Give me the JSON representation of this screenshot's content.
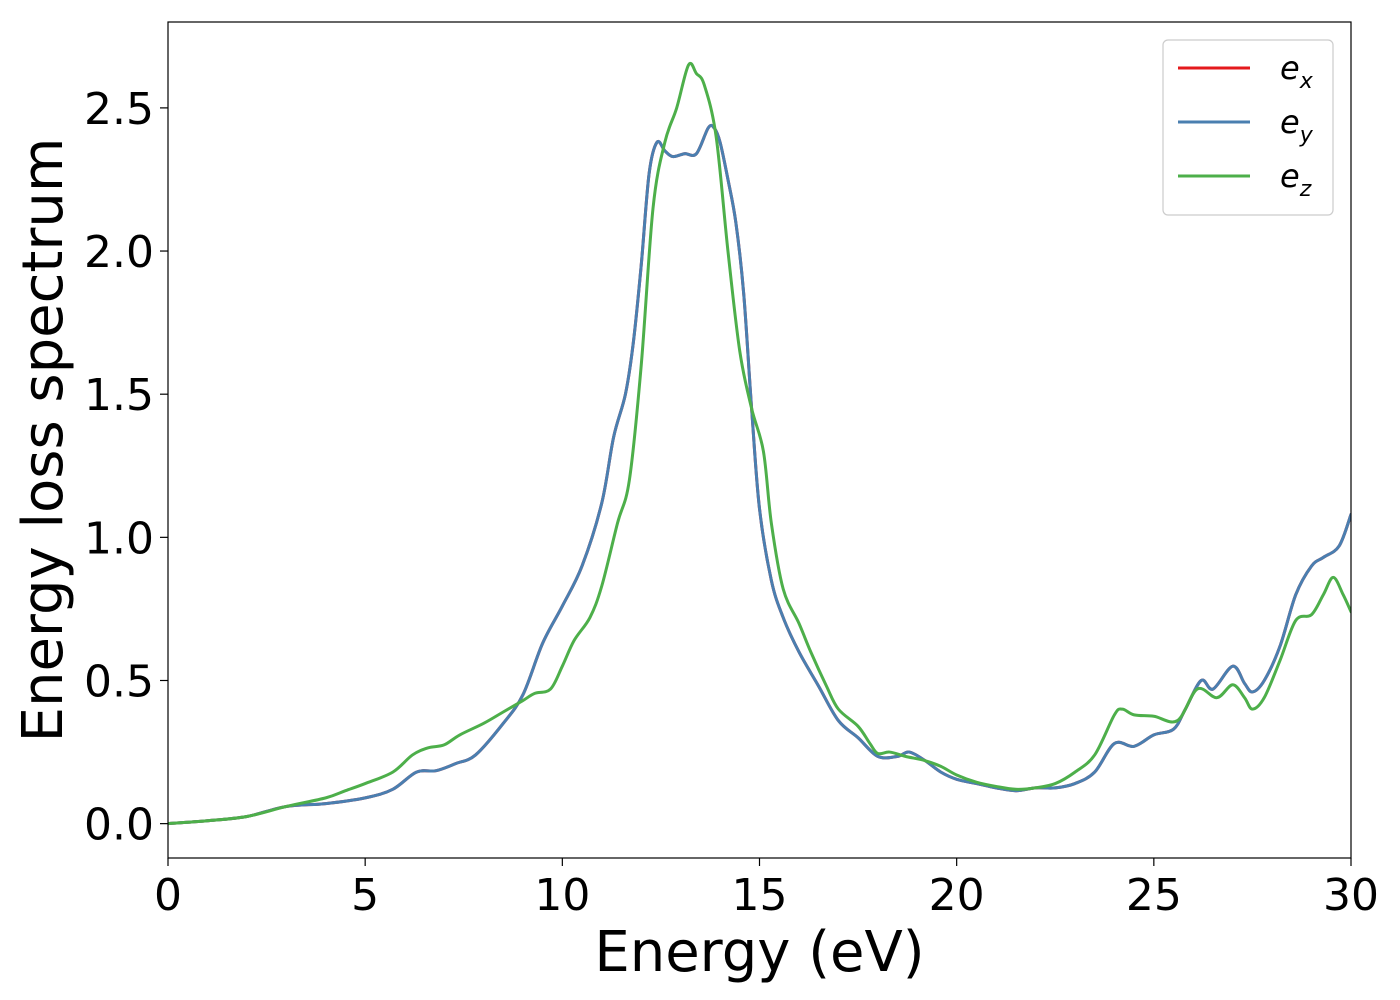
{
  "chart_data": {
    "type": "line",
    "xlabel": "Energy (eV)",
    "ylabel": "Energy loss spectrum",
    "xlim": [
      0,
      30
    ],
    "ylim": [
      -0.12,
      2.8
    ],
    "xticks": [
      0,
      5,
      10,
      15,
      20,
      25,
      30
    ],
    "xtick_labels": [
      "0",
      "5",
      "10",
      "15",
      "20",
      "25",
      "30"
    ],
    "yticks": [
      0.0,
      0.5,
      1.0,
      1.5,
      2.0,
      2.5
    ],
    "ytick_labels": [
      "0.0",
      "0.5",
      "1.0",
      "1.5",
      "2.0",
      "2.5"
    ],
    "grid": false,
    "legend_position": "top-right",
    "series": [
      {
        "name": "e",
        "sub": "x",
        "color": "#e41a1c",
        "points": [
          [
            0,
            0
          ],
          [
            1,
            0.01
          ],
          [
            2,
            0.025
          ],
          [
            3,
            0.06
          ],
          [
            4,
            0.07
          ],
          [
            5,
            0.09
          ],
          [
            5.7,
            0.12
          ],
          [
            6.3,
            0.18
          ],
          [
            6.8,
            0.185
          ],
          [
            7.3,
            0.21
          ],
          [
            7.8,
            0.24
          ],
          [
            8.5,
            0.35
          ],
          [
            9,
            0.45
          ],
          [
            9.5,
            0.63
          ],
          [
            10,
            0.76
          ],
          [
            10.5,
            0.9
          ],
          [
            11,
            1.12
          ],
          [
            11.3,
            1.35
          ],
          [
            11.6,
            1.5
          ],
          [
            11.8,
            1.68
          ],
          [
            12,
            1.95
          ],
          [
            12.2,
            2.27
          ],
          [
            12.4,
            2.38
          ],
          [
            12.6,
            2.35
          ],
          [
            12.8,
            2.33
          ],
          [
            13.1,
            2.34
          ],
          [
            13.4,
            2.34
          ],
          [
            13.7,
            2.43
          ],
          [
            13.85,
            2.43
          ],
          [
            14,
            2.38
          ],
          [
            14.2,
            2.25
          ],
          [
            14.4,
            2.1
          ],
          [
            14.6,
            1.85
          ],
          [
            14.8,
            1.45
          ],
          [
            15,
            1.1
          ],
          [
            15.3,
            0.85
          ],
          [
            15.6,
            0.72
          ],
          [
            16,
            0.6
          ],
          [
            16.5,
            0.48
          ],
          [
            17,
            0.36
          ],
          [
            17.5,
            0.3
          ],
          [
            18,
            0.235
          ],
          [
            18.5,
            0.235
          ],
          [
            18.8,
            0.25
          ],
          [
            19.2,
            0.22
          ],
          [
            19.6,
            0.18
          ],
          [
            20,
            0.155
          ],
          [
            20.5,
            0.14
          ],
          [
            21,
            0.125
          ],
          [
            21.5,
            0.115
          ],
          [
            22,
            0.125
          ],
          [
            22.5,
            0.125
          ],
          [
            23,
            0.14
          ],
          [
            23.5,
            0.18
          ],
          [
            24,
            0.28
          ],
          [
            24.5,
            0.27
          ],
          [
            25,
            0.31
          ],
          [
            25.5,
            0.33
          ],
          [
            25.8,
            0.4
          ],
          [
            26.2,
            0.5
          ],
          [
            26.5,
            0.47
          ],
          [
            27,
            0.55
          ],
          [
            27.3,
            0.49
          ],
          [
            27.5,
            0.46
          ],
          [
            27.8,
            0.5
          ],
          [
            28.2,
            0.62
          ],
          [
            28.6,
            0.8
          ],
          [
            29,
            0.9
          ],
          [
            29.3,
            0.93
          ],
          [
            29.7,
            0.97
          ],
          [
            30,
            1.08
          ]
        ]
      },
      {
        "name": "e",
        "sub": "y",
        "color": "#4a7fb0",
        "points": [
          [
            0,
            0
          ],
          [
            1,
            0.01
          ],
          [
            2,
            0.025
          ],
          [
            3,
            0.06
          ],
          [
            4,
            0.07
          ],
          [
            5,
            0.09
          ],
          [
            5.7,
            0.12
          ],
          [
            6.3,
            0.18
          ],
          [
            6.8,
            0.185
          ],
          [
            7.3,
            0.21
          ],
          [
            7.8,
            0.24
          ],
          [
            8.5,
            0.35
          ],
          [
            9,
            0.45
          ],
          [
            9.5,
            0.63
          ],
          [
            10,
            0.76
          ],
          [
            10.5,
            0.9
          ],
          [
            11,
            1.12
          ],
          [
            11.3,
            1.35
          ],
          [
            11.6,
            1.5
          ],
          [
            11.8,
            1.68
          ],
          [
            12,
            1.95
          ],
          [
            12.2,
            2.27
          ],
          [
            12.4,
            2.38
          ],
          [
            12.6,
            2.35
          ],
          [
            12.8,
            2.33
          ],
          [
            13.1,
            2.34
          ],
          [
            13.4,
            2.34
          ],
          [
            13.7,
            2.43
          ],
          [
            13.85,
            2.43
          ],
          [
            14,
            2.38
          ],
          [
            14.2,
            2.25
          ],
          [
            14.4,
            2.1
          ],
          [
            14.6,
            1.85
          ],
          [
            14.8,
            1.45
          ],
          [
            15,
            1.1
          ],
          [
            15.3,
            0.85
          ],
          [
            15.6,
            0.72
          ],
          [
            16,
            0.6
          ],
          [
            16.5,
            0.48
          ],
          [
            17,
            0.36
          ],
          [
            17.5,
            0.3
          ],
          [
            18,
            0.235
          ],
          [
            18.5,
            0.235
          ],
          [
            18.8,
            0.25
          ],
          [
            19.2,
            0.22
          ],
          [
            19.6,
            0.18
          ],
          [
            20,
            0.155
          ],
          [
            20.5,
            0.14
          ],
          [
            21,
            0.125
          ],
          [
            21.5,
            0.115
          ],
          [
            22,
            0.125
          ],
          [
            22.5,
            0.125
          ],
          [
            23,
            0.14
          ],
          [
            23.5,
            0.18
          ],
          [
            24,
            0.28
          ],
          [
            24.5,
            0.27
          ],
          [
            25,
            0.31
          ],
          [
            25.5,
            0.33
          ],
          [
            25.8,
            0.4
          ],
          [
            26.2,
            0.5
          ],
          [
            26.5,
            0.47
          ],
          [
            27,
            0.55
          ],
          [
            27.3,
            0.49
          ],
          [
            27.5,
            0.46
          ],
          [
            27.8,
            0.5
          ],
          [
            28.2,
            0.62
          ],
          [
            28.6,
            0.8
          ],
          [
            29,
            0.9
          ],
          [
            29.3,
            0.93
          ],
          [
            29.7,
            0.97
          ],
          [
            30,
            1.08
          ]
        ]
      },
      {
        "name": "e",
        "sub": "z",
        "color": "#4daf4a",
        "points": [
          [
            0,
            0
          ],
          [
            1,
            0.01
          ],
          [
            2,
            0.025
          ],
          [
            3,
            0.06
          ],
          [
            4,
            0.09
          ],
          [
            4.5,
            0.115
          ],
          [
            5,
            0.14
          ],
          [
            5.7,
            0.18
          ],
          [
            6.2,
            0.24
          ],
          [
            6.6,
            0.265
          ],
          [
            7,
            0.275
          ],
          [
            7.4,
            0.31
          ],
          [
            8,
            0.35
          ],
          [
            8.5,
            0.39
          ],
          [
            9,
            0.43
          ],
          [
            9.3,
            0.455
          ],
          [
            9.7,
            0.47
          ],
          [
            10,
            0.55
          ],
          [
            10.3,
            0.64
          ],
          [
            10.7,
            0.72
          ],
          [
            11,
            0.83
          ],
          [
            11.4,
            1.05
          ],
          [
            11.7,
            1.2
          ],
          [
            12,
            1.6
          ],
          [
            12.3,
            2.15
          ],
          [
            12.6,
            2.38
          ],
          [
            12.9,
            2.5
          ],
          [
            13.2,
            2.65
          ],
          [
            13.4,
            2.62
          ],
          [
            13.6,
            2.58
          ],
          [
            13.9,
            2.4
          ],
          [
            14.2,
            2.0
          ],
          [
            14.5,
            1.65
          ],
          [
            14.8,
            1.45
          ],
          [
            15.1,
            1.3
          ],
          [
            15.3,
            1.05
          ],
          [
            15.6,
            0.82
          ],
          [
            16,
            0.7
          ],
          [
            16.3,
            0.6
          ],
          [
            16.7,
            0.48
          ],
          [
            17,
            0.4
          ],
          [
            17.5,
            0.34
          ],
          [
            17.8,
            0.28
          ],
          [
            18,
            0.245
          ],
          [
            18.3,
            0.25
          ],
          [
            18.7,
            0.235
          ],
          [
            19.2,
            0.22
          ],
          [
            19.6,
            0.2
          ],
          [
            20,
            0.17
          ],
          [
            20.5,
            0.145
          ],
          [
            21,
            0.13
          ],
          [
            21.5,
            0.12
          ],
          [
            22,
            0.125
          ],
          [
            22.5,
            0.14
          ],
          [
            23,
            0.18
          ],
          [
            23.5,
            0.24
          ],
          [
            24,
            0.38
          ],
          [
            24.2,
            0.4
          ],
          [
            24.5,
            0.38
          ],
          [
            25,
            0.375
          ],
          [
            25.6,
            0.36
          ],
          [
            26.1,
            0.47
          ],
          [
            26.6,
            0.44
          ],
          [
            27,
            0.485
          ],
          [
            27.3,
            0.44
          ],
          [
            27.5,
            0.4
          ],
          [
            27.8,
            0.44
          ],
          [
            28.2,
            0.57
          ],
          [
            28.6,
            0.71
          ],
          [
            29,
            0.73
          ],
          [
            29.3,
            0.8
          ],
          [
            29.55,
            0.86
          ],
          [
            29.8,
            0.8
          ],
          [
            30,
            0.74
          ]
        ]
      }
    ]
  }
}
